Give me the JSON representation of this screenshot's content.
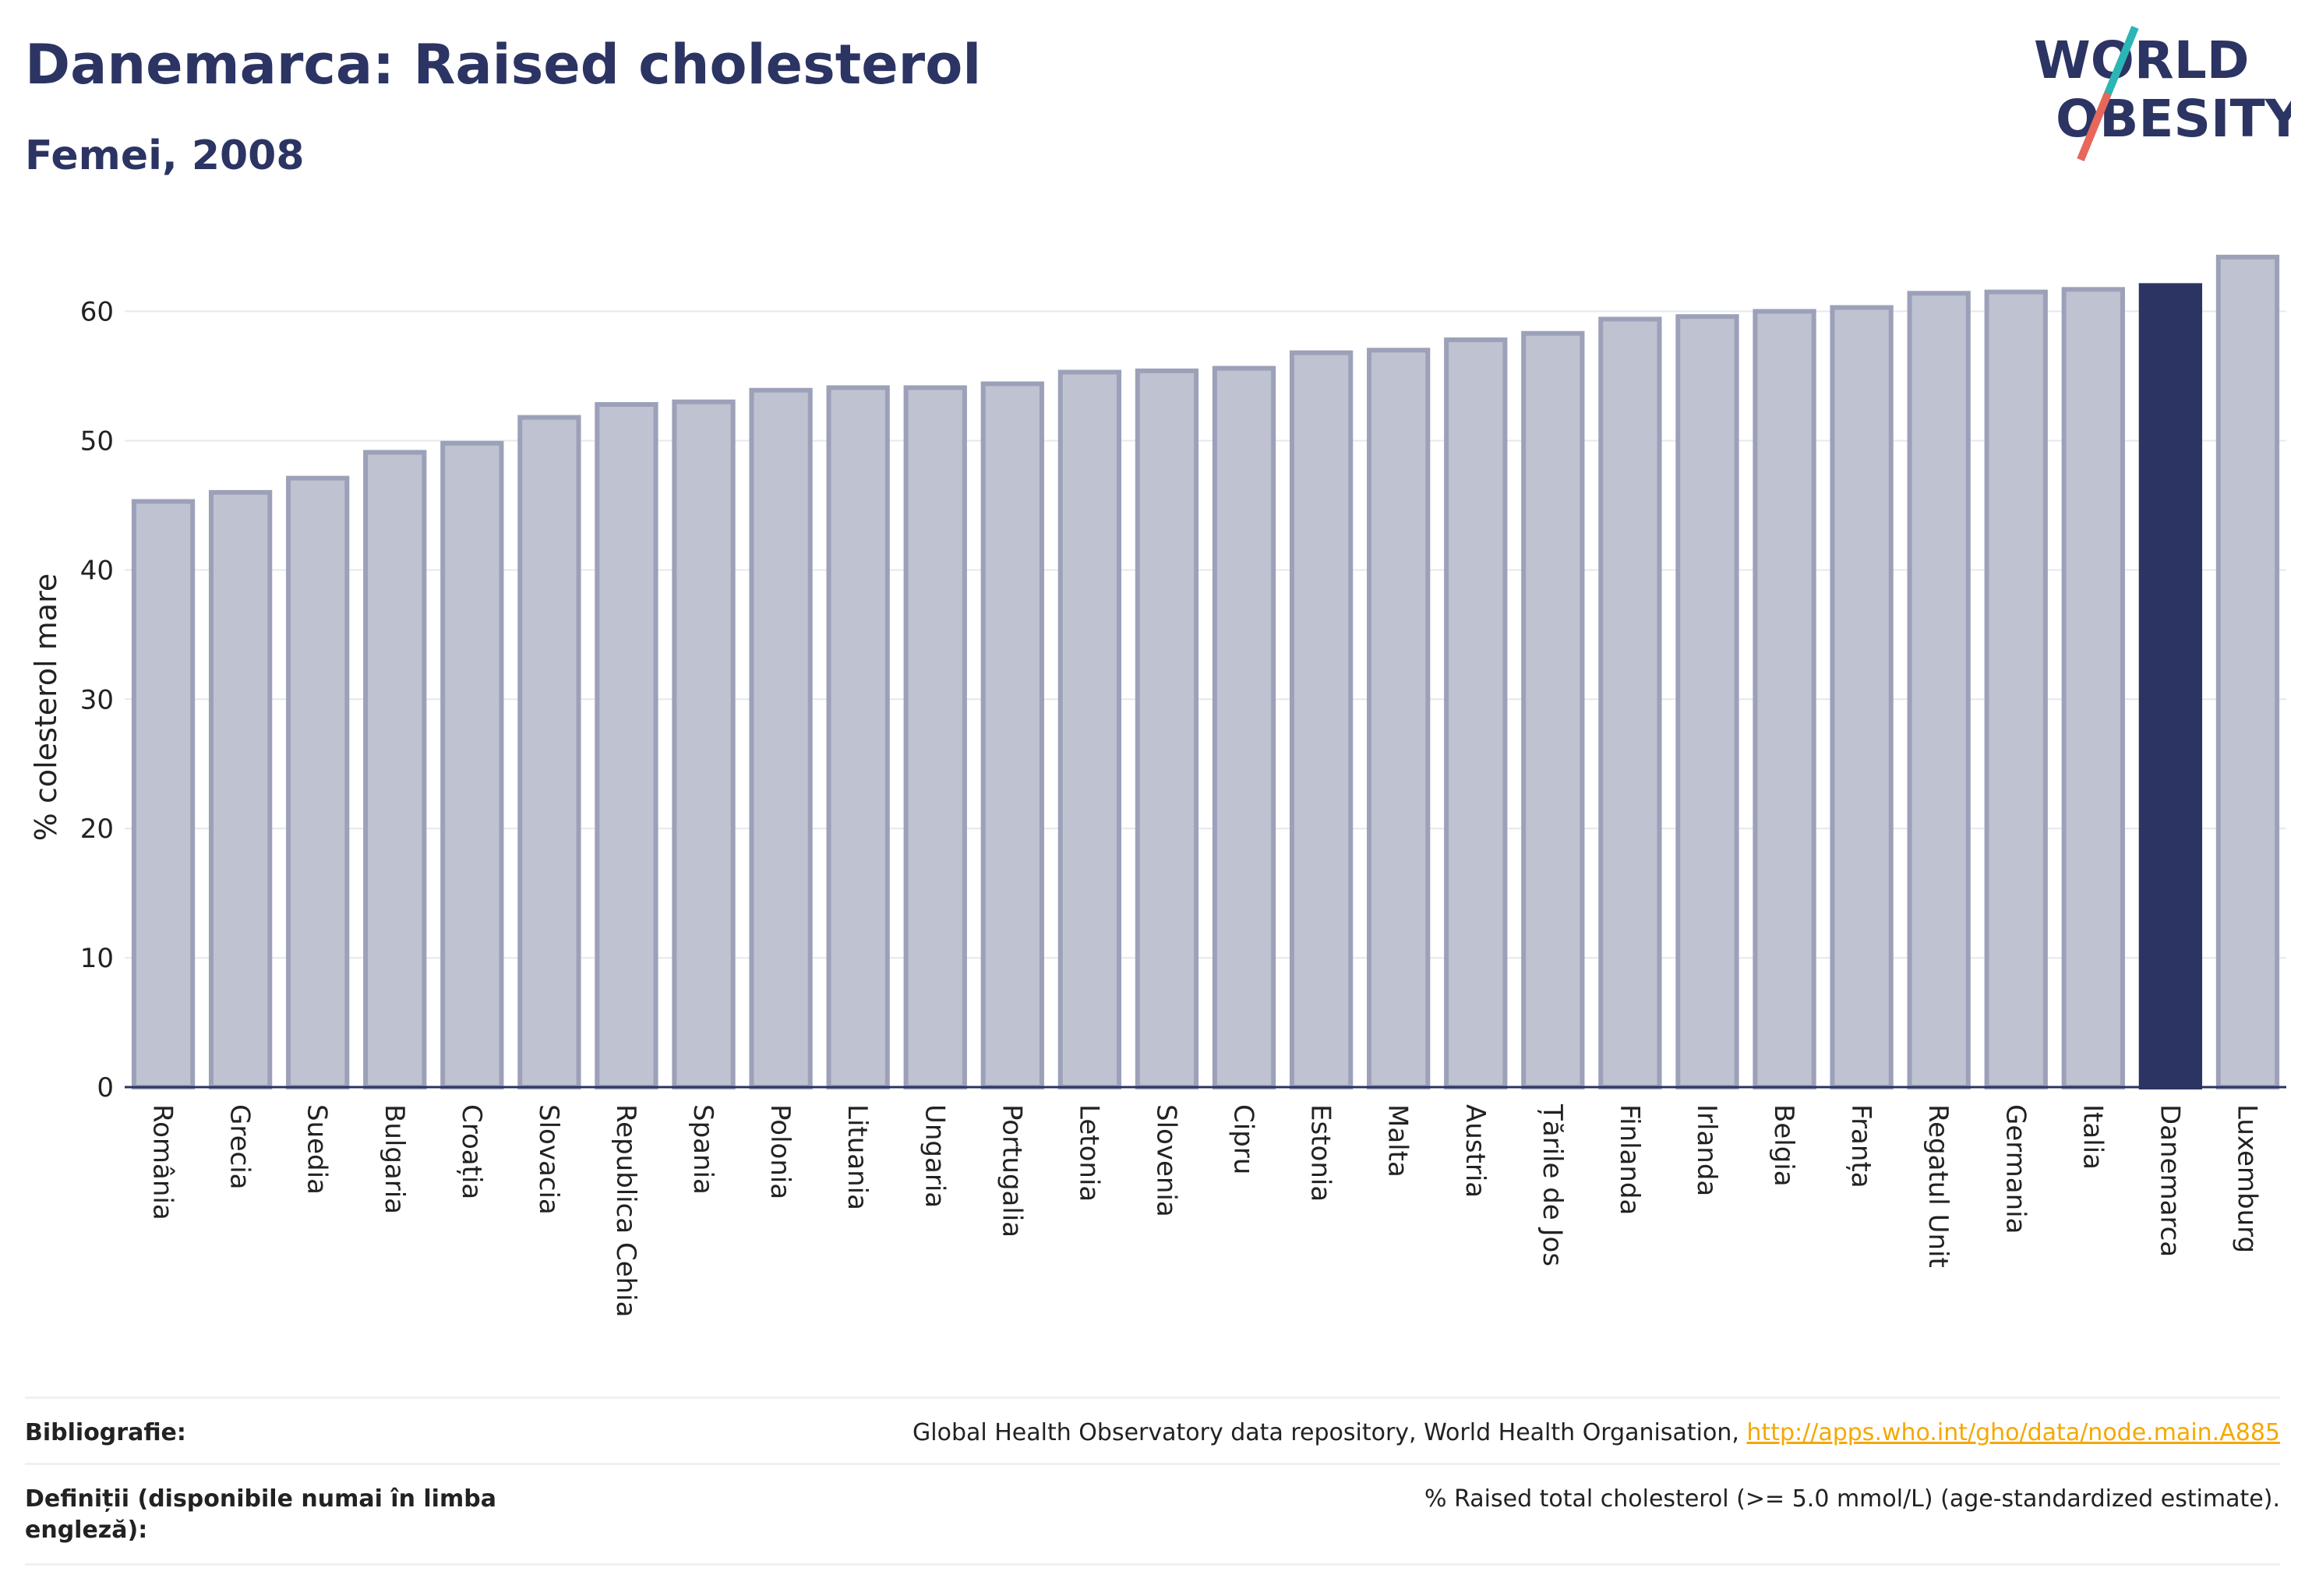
{
  "header": {
    "title": "Danemarca: Raised cholesterol",
    "subtitle": "Femei, 2008"
  },
  "logo": {
    "line1": "WORLD",
    "line2": "OBESITY",
    "colors": {
      "text": "#2b3462",
      "slash_teal": "#2bb5b5",
      "slash_coral": "#e8675a"
    }
  },
  "chart_data": {
    "type": "bar",
    "categories": [
      "România",
      "Grecia",
      "Suedia",
      "Bulgaria",
      "Croația",
      "Slovacia",
      "Republica Cehia",
      "Spania",
      "Polonia",
      "Lituania",
      "Ungaria",
      "Portugalia",
      "Letonia",
      "Slovenia",
      "Cipru",
      "Estonia",
      "Malta",
      "Austria",
      "Țările de Jos",
      "Finlanda",
      "Irlanda",
      "Belgia",
      "Franța",
      "Regatul Unit",
      "Germania",
      "Italia",
      "Danemarca",
      "Luxemburg"
    ],
    "values": [
      45.3,
      46.0,
      47.1,
      49.1,
      49.8,
      51.8,
      52.8,
      53.0,
      53.9,
      54.1,
      54.1,
      54.4,
      55.3,
      55.4,
      55.6,
      56.8,
      57.0,
      57.8,
      58.3,
      59.4,
      59.6,
      60.0,
      60.3,
      61.4,
      61.5,
      61.7,
      62.0,
      64.2
    ],
    "highlight": "Danemarca",
    "title": "Danemarca: Raised cholesterol",
    "subtitle": "Femei, 2008",
    "xlabel": "",
    "ylabel": "% colesterol mare",
    "ylim": [
      0,
      66
    ],
    "yticks": [
      0,
      10,
      20,
      30,
      40,
      50,
      60
    ],
    "grid": true,
    "legend": "none",
    "colors": {
      "bar_fill": "#bfc2d0",
      "bar_stroke": "#9ca1b9",
      "highlight_fill": "#2b3462"
    }
  },
  "footer": {
    "bibliography_label": "Bibliografie:",
    "bibliography_text": "Global Health Observatory data repository, World Health Organisation, ",
    "bibliography_link": "http://apps.who.int/gho/data/node.main.A885",
    "definitions_label": "Definiții (disponibile numai în limba engleză):",
    "definitions_text": "% Raised total cholesterol (>= 5.0 mmol/L) (age-standardized estimate)."
  }
}
